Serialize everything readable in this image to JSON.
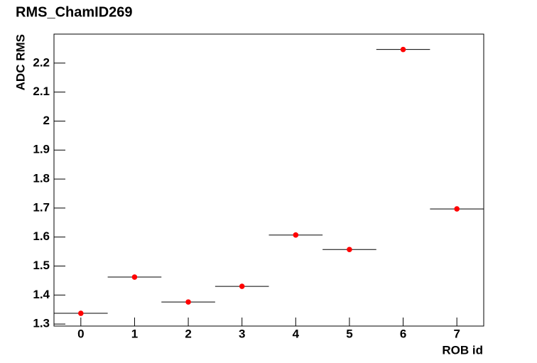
{
  "chart_data": {
    "type": "scatter",
    "title": "RMS_ChamID269",
    "x_label": "ROB id",
    "y_label": "ADC RMS",
    "x": [
      0,
      1,
      2,
      3,
      4,
      5,
      6,
      7
    ],
    "x_errors": [
      0.5,
      0.5,
      0.5,
      0.5,
      0.5,
      0.5,
      0.5,
      0.5
    ],
    "values": [
      1.337,
      1.462,
      1.376,
      1.43,
      1.607,
      1.557,
      2.247,
      1.697
    ],
    "color": "#ff0000",
    "error_color": "#000000",
    "xlim": [
      -0.5,
      7.5
    ],
    "xticks": [
      0,
      1,
      2,
      3,
      4,
      5,
      6,
      7
    ],
    "ylim": [
      1.293,
      2.3
    ],
    "yticks": [
      1.3,
      1.4,
      1.5,
      1.6,
      1.7,
      1.8,
      1.9,
      2,
      2.1,
      2.2
    ]
  }
}
